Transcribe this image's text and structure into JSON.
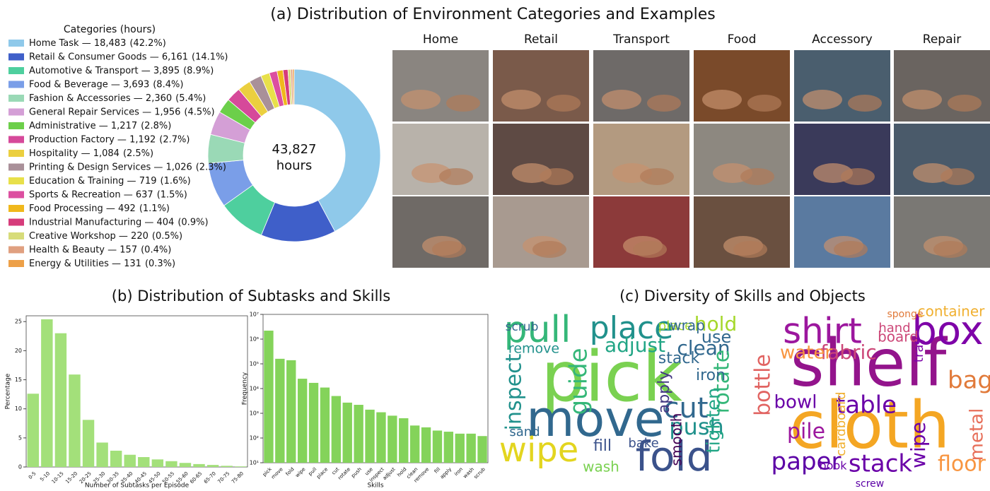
{
  "title_a": "(a) Distribution of Environment Categories and Examples",
  "title_b": "(b) Distribution of Subtasks and Skills",
  "title_c": "(c) Diversity of Skills and Objects",
  "examples": {
    "columns": [
      "Home",
      "Retail",
      "Transport",
      "Food",
      "Accessory",
      "Repair"
    ]
  },
  "chart_data": [
    {
      "type": "pie",
      "donut": true,
      "legend_title": "Categories (hours)",
      "center_label": "43,827",
      "center_unit": "hours",
      "separator": " — ",
      "categories": [
        "Home Task",
        "Retail & Consumer Goods",
        "Automotive & Transport",
        "Food & Beverage",
        "Fashion & Accessories",
        "General Repair Services",
        "Administrative",
        "Production Factory",
        "Hospitality",
        "Printing & Design Services",
        "Education & Training",
        "Sports & Recreation",
        "Food Processing",
        "Industrial Manufacturing",
        "Creative Workshop",
        "Health & Beauty",
        "Energy & Utilities"
      ],
      "values": [
        18483,
        6161,
        3895,
        3693,
        2360,
        1956,
        1217,
        1192,
        1084,
        1026,
        719,
        637,
        492,
        404,
        220,
        157,
        131
      ],
      "value_labels": [
        "18,483",
        "6,161",
        "3,895",
        "3,693",
        "2,360",
        "1,956",
        "1,217",
        "1,192",
        "1,084",
        "1,026",
        "719",
        "637",
        "492",
        "404",
        "220",
        "157",
        "131"
      ],
      "percent_labels": [
        "(42.2%)",
        "(14.1%)",
        "(8.9%)",
        "(8.4%)",
        "(5.4%)",
        "(4.5%)",
        "(2.8%)",
        "(2.7%)",
        "(2.5%)",
        "(2.3%)",
        "(1.6%)",
        "(1.5%)",
        "(1.1%)",
        "(0.9%)",
        "(0.5%)",
        "(0.4%)",
        "(0.3%)"
      ],
      "colors": [
        "#8fc9ea",
        "#3f5fc9",
        "#4ecf9e",
        "#7a9ee8",
        "#9ad9b6",
        "#d49fd6",
        "#6ccf4a",
        "#d6499a",
        "#ebcf3f",
        "#a99099",
        "#e8e04a",
        "#dc4fa0",
        "#f0b81c",
        "#d63c7b",
        "#d7dc7a",
        "#e0a080",
        "#eda048"
      ]
    },
    {
      "type": "bar",
      "xlabel": "Number of Subtasks per Episode",
      "ylabel": "Percentage",
      "categories": [
        "0-5",
        "5-10",
        "10-15",
        "15-20",
        "20-25",
        "25-30",
        "30-35",
        "35-40",
        "40-45",
        "45-50",
        "50-55",
        "55-60",
        "60-65",
        "65-70",
        "70-75",
        "75-80"
      ],
      "values": [
        12.6,
        25.4,
        23.0,
        15.9,
        8.1,
        4.2,
        2.8,
        2.1,
        1.7,
        1.3,
        1.0,
        0.7,
        0.5,
        0.35,
        0.2,
        0.1
      ],
      "color": "#a3e07a",
      "ylim": [
        0,
        26
      ],
      "yticks": [
        0,
        5,
        10,
        15,
        20,
        25
      ]
    },
    {
      "type": "bar",
      "log_scale": true,
      "xlabel": "Skills",
      "ylabel": "Frequency",
      "categories": [
        "pick",
        "move",
        "fold",
        "wipe",
        "pull",
        "place",
        "cut",
        "rotate",
        "push",
        "use",
        "inspect",
        "adjust",
        "hold",
        "clean",
        "remove",
        "fill",
        "apply",
        "iron",
        "wash",
        "scrub"
      ],
      "values": [
        2200000,
        160000,
        140000,
        25000,
        17000,
        11000,
        5000,
        2700,
        2200,
        1400,
        1100,
        800,
        630,
        320,
        270,
        200,
        180,
        150,
        150,
        120
      ],
      "color": "#84d35a",
      "ylim": [
        10,
        10000000
      ],
      "yticks": [
        {
          "value": 10,
          "label": "10¹"
        },
        {
          "value": 100,
          "label": "10²"
        },
        {
          "value": 1000,
          "label": "10³"
        },
        {
          "value": 10000,
          "label": "10⁴"
        },
        {
          "value": 100000,
          "label": "10⁵"
        },
        {
          "value": 1000000,
          "label": "10⁶"
        },
        {
          "value": 10000000,
          "label": "10⁷"
        }
      ]
    }
  ],
  "word_clouds": [
    {
      "words": [
        {
          "text": "pick",
          "color": "#7ad151"
        },
        {
          "text": "move",
          "color": "#31688e"
        },
        {
          "text": "pull",
          "color": "#35b779"
        },
        {
          "text": "place",
          "color": "#21918c"
        },
        {
          "text": "fold",
          "color": "#3b528b"
        },
        {
          "text": "wipe",
          "color": "#e3d51f"
        },
        {
          "text": "cut",
          "color": "#31688e"
        },
        {
          "text": "push",
          "color": "#21918c"
        },
        {
          "text": "clean",
          "color": "#31688e"
        },
        {
          "text": "hold",
          "color": "#a5d82b"
        },
        {
          "text": "use",
          "color": "#31688e"
        },
        {
          "text": "adjust",
          "color": "#21a585"
        },
        {
          "text": "rotate",
          "color": "#35b779"
        },
        {
          "text": "inspect",
          "color": "#21918c"
        },
        {
          "text": "remove",
          "color": "#21918c"
        },
        {
          "text": "scrub",
          "color": "#31688e"
        },
        {
          "text": "fill",
          "color": "#3b528b"
        },
        {
          "text": "wash",
          "color": "#7ad151"
        },
        {
          "text": "iron",
          "color": "#31688e"
        },
        {
          "text": "apply",
          "color": "#443983"
        },
        {
          "text": "sand",
          "color": "#31688e"
        },
        {
          "text": "guide",
          "color": "#35b779"
        },
        {
          "text": "tighten",
          "color": "#21a585"
        },
        {
          "text": "stack",
          "color": "#31688e"
        },
        {
          "text": "smooth",
          "color": "#440154"
        },
        {
          "text": "place",
          "color": "#a5d82b"
        },
        {
          "text": "wrap",
          "color": "#31688e"
        },
        {
          "text": "bake",
          "color": "#3b528b"
        }
      ]
    },
    {
      "words": [
        {
          "text": "shelf",
          "color": "#93148c"
        },
        {
          "text": "cloth",
          "color": "#f4a623"
        },
        {
          "text": "shirt",
          "color": "#9c179e"
        },
        {
          "text": "box",
          "color": "#7e03a8"
        },
        {
          "text": "table",
          "color": "#6a00a8"
        },
        {
          "text": "bag",
          "color": "#e17a3a"
        },
        {
          "text": "paper",
          "color": "#5c01a6"
        },
        {
          "text": "stack",
          "color": "#6a00a8"
        },
        {
          "text": "floor",
          "color": "#f89540"
        },
        {
          "text": "bottle",
          "color": "#e16462"
        },
        {
          "text": "fabric",
          "color": "#cc4778"
        },
        {
          "text": "bowl",
          "color": "#6a00a8"
        },
        {
          "text": "pile",
          "color": "#9c179e"
        },
        {
          "text": "wipe",
          "color": "#6a00a8"
        },
        {
          "text": "metal",
          "color": "#e76f5a"
        },
        {
          "text": "container",
          "color": "#f0b030"
        },
        {
          "text": "water",
          "color": "#f89540"
        },
        {
          "text": "board",
          "color": "#cc4778"
        },
        {
          "text": "book",
          "color": "#6a00a8"
        },
        {
          "text": "cardboard",
          "color": "#f0b030"
        },
        {
          "text": "tray",
          "color": "#7e03a8"
        },
        {
          "text": "hand",
          "color": "#cc4778"
        },
        {
          "text": "sponge",
          "color": "#e17a3a"
        },
        {
          "text": "screw",
          "color": "#5c01a6"
        }
      ]
    }
  ]
}
